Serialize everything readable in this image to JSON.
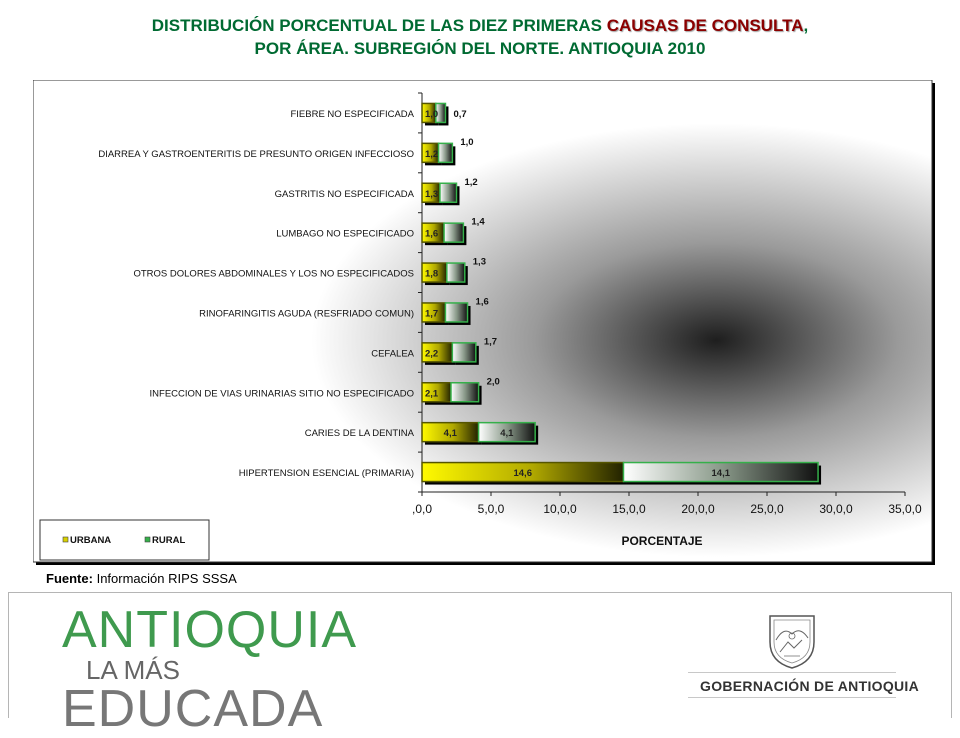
{
  "title": {
    "part1": "DISTRIBUCIÓN PORCENTUAL DE LAS DIEZ PRIMERAS ",
    "highlight": "CAUSAS DE CONSULTA",
    "part2": ",",
    "line2": "POR ÁREA. SUBREGIÓN DEL  NORTE. ANTIOQUIA 2010"
  },
  "source": {
    "label": "Fuente:",
    "text": "Información RIPS SSSA"
  },
  "logo_left": {
    "line1": "ANTIOQUIA",
    "line2": "LA MÁS",
    "line3": "EDUCADA"
  },
  "logo_right": {
    "text": "GOBERNACIÓN DE ANTIOQUIA"
  },
  "chart_data": {
    "type": "bar",
    "orientation": "horizontal",
    "stacked": true,
    "categories": [
      "FIEBRE  NO ESPECIFICADA",
      "DIARREA Y GASTROENTERITIS DE PRESUNTO ORIGEN INFECCIOSO",
      "GASTRITIS  NO ESPECIFICADA",
      "LUMBAGO NO ESPECIFICADO",
      "OTROS DOLORES ABDOMINALES Y LOS NO ESPECIFICADOS",
      "RINOFARINGITIS AGUDA (RESFRIADO COMUN)",
      "CEFALEA",
      "INFECCION DE VIAS URINARIAS  SITIO NO ESPECIFICADO",
      "CARIES DE LA DENTINA",
      "HIPERTENSION ESENCIAL (PRIMARIA)"
    ],
    "series": [
      {
        "name": "URBANA",
        "values": [
          1.0,
          1.2,
          1.3,
          1.6,
          1.8,
          1.7,
          2.2,
          2.1,
          4.1,
          14.6
        ],
        "labels": [
          "1,0",
          "1,2",
          "1,3",
          "1,6",
          "1,8",
          "1,7",
          "2,2",
          "2,1",
          "4,1",
          "14,6"
        ]
      },
      {
        "name": "RURAL",
        "values": [
          0.7,
          1.0,
          1.2,
          1.4,
          1.3,
          1.6,
          1.7,
          2.0,
          4.1,
          14.1
        ],
        "labels": [
          "0,7",
          "1,0",
          "1,2",
          "1,4",
          "1,3",
          "1,6",
          "1,7",
          "2,0",
          "4,1",
          "14,1"
        ]
      }
    ],
    "xlim": [
      0,
      35
    ],
    "xticks": [
      0,
      5,
      10,
      15,
      20,
      25,
      30,
      35
    ],
    "xtick_labels": [
      ",0,0",
      "5,0,0",
      "10,0,0",
      "15,0,0",
      "20,0,0",
      "25,0,0",
      "30,0,0",
      "35,0,0"
    ],
    "xlabel": "PORCENTAJE",
    "ylabel": "",
    "legend": "bottom-left",
    "grid": false,
    "colors": {
      "URBANA": "#e8e000",
      "RURAL": "#35b04a"
    }
  }
}
